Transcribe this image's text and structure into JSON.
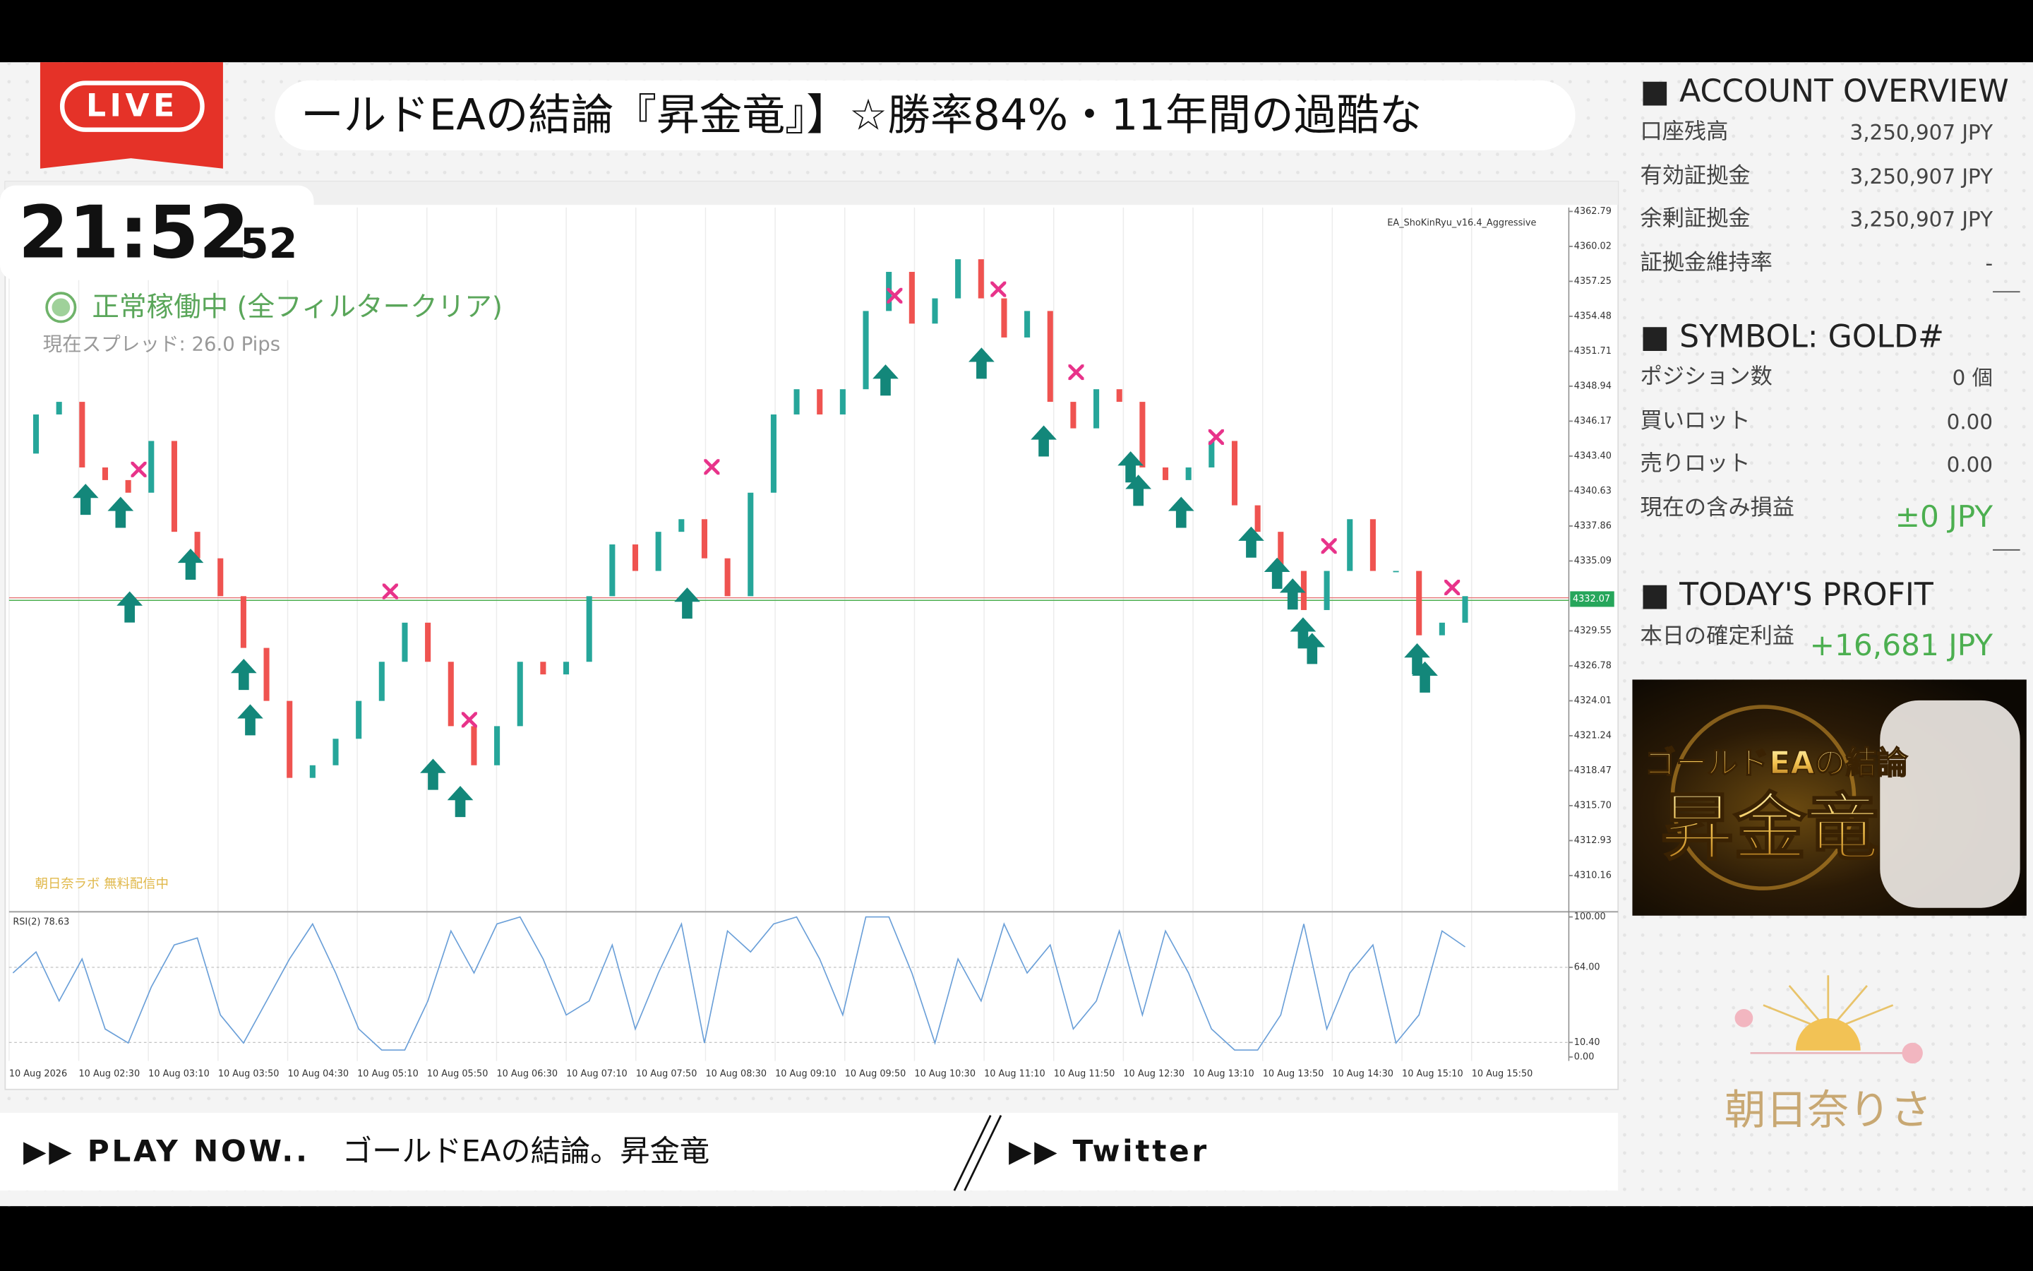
{
  "live_badge": "LIVE",
  "ticker": "ールドEAの結論『昇金竜』】☆勝率84%・11年間の過酷な",
  "clock": {
    "time": "21:52",
    "seconds": "52"
  },
  "status": "正常稼働中 (全フィルタークリア)",
  "spread": "現在スプレッド: 26.0 Pips",
  "chart": {
    "type": "candlestick",
    "indicator_name": "EA_ShoKinRyu_v16.4_Aggressive",
    "watermark": "朝日奈ラボ 無料配信中",
    "ylim": [
      4307.6,
      4363.1
    ],
    "price_ticks": [
      4362.79,
      4360.02,
      4357.25,
      4354.48,
      4351.71,
      4348.94,
      4346.17,
      {
        "value": 4343.4,
        "label": "4343.40"
      },
      4340.63,
      4337.86,
      4335.09,
      4329.55,
      4326.78,
      4324.01,
      4321.24,
      4318.47,
      {
        "value": 4315.7,
        "label": "4315.70"
      },
      4312.93,
      4310.16
    ],
    "current_price": 4332.07,
    "time_labels": [
      "10 Aug 2026",
      "10 Aug 02:30",
      "10 Aug 03:10",
      "10 Aug 03:50",
      "10 Aug 04:30",
      "10 Aug 05:10",
      "10 Aug 05:50",
      "10 Aug 06:30",
      "10 Aug 07:10",
      "10 Aug 07:50",
      "10 Aug 08:30",
      "10 Aug 09:10",
      "10 Aug 09:50",
      "10 Aug 10:30",
      "10 Aug 11:10",
      "10 Aug 11:50",
      "10 Aug 12:30",
      "10 Aug 13:10",
      "10 Aug 13:50",
      "10 Aug 14:30",
      "10 Aug 15:10",
      "10 Aug 15:50"
    ],
    "closes": [
      4343.6,
      4346.7,
      4347.7,
      4342.5,
      4341.5,
      4340.5,
      4344.6,
      4337.4,
      4335.3,
      4332.3,
      4328.2,
      4324.0,
      4317.9,
      4318.9,
      4321.0,
      4324.0,
      4327.1,
      4330.2,
      4327.1,
      4322.0,
      4318.9,
      4322.0,
      4327.1,
      4326.1,
      4327.1,
      4332.3,
      4336.4,
      4334.3,
      4337.4,
      4338.4,
      4335.3,
      4332.3,
      4340.5,
      4346.7,
      4348.7,
      4346.7,
      4348.7,
      4354.9,
      4358.0,
      4353.9,
      4355.9,
      4359.0,
      4355.9,
      4352.8,
      4354.9,
      4347.7,
      4345.6,
      4348.7,
      4347.7,
      4342.5,
      4341.5,
      4342.5,
      4344.6,
      4339.5,
      4337.4,
      4334.3,
      4331.2,
      4334.3,
      4338.4,
      4334.3,
      4334.3,
      4329.2,
      4330.2,
      4332.3
    ],
    "rsi_label": "RSI(2) 78.63",
    "rsi_ylim": [
      0,
      100
    ],
    "rsi_ticks": [
      {
        "value": 100,
        "label": "100.00"
      },
      {
        "value": 64,
        "label": "64.00"
      },
      {
        "value": 10.4,
        "label": "10.40"
      },
      {
        "value": 0,
        "label": "0.00"
      }
    ],
    "rsi_values": [
      60,
      75,
      40,
      70,
      20,
      10,
      50,
      80,
      85,
      30,
      10,
      40,
      70,
      95,
      60,
      20,
      5,
      5,
      40,
      90,
      60,
      95,
      100,
      70,
      30,
      40,
      80,
      20,
      60,
      95,
      10,
      90,
      75,
      95,
      100,
      70,
      30,
      100,
      100,
      60,
      10,
      70,
      40,
      95,
      60,
      80,
      20,
      40,
      90,
      30,
      90,
      60,
      20,
      5,
      5,
      30,
      95,
      20,
      60,
      80,
      10,
      30,
      90,
      78.63
    ]
  },
  "account_overview": {
    "title": "■ ACCOUNT OVERVIEW",
    "rows": [
      {
        "label": "口座残高",
        "value": "3,250,907 JPY"
      },
      {
        "label": "有効証拠金",
        "value": "3,250,907 JPY"
      },
      {
        "label": "余剰証拠金",
        "value": "3,250,907 JPY"
      },
      {
        "label": "証拠金維持率",
        "value": "-"
      }
    ]
  },
  "symbol": {
    "title": "■ SYMBOL: GOLD#",
    "rows": [
      {
        "label": "ポジション数",
        "value": "0 個"
      },
      {
        "label": "買いロット",
        "value": "0.00"
      },
      {
        "label": "売りロット",
        "value": "0.00"
      }
    ],
    "pnl_label": "現在の含み損益",
    "pnl_value": "±0 JPY"
  },
  "today_profit": {
    "title": "■ TODAY'S PROFIT",
    "label": "本日の確定利益",
    "value": "+16,681 JPY"
  },
  "promo": {
    "line1": "ゴールドEAの結論",
    "line2": "昇金竜"
  },
  "logo": "朝日奈りさ",
  "footer": {
    "play": "▶▶ PLAY NOW..",
    "song": "ゴールドEAの結論。昇金竜",
    "twitter": "▶▶ Twitter"
  }
}
